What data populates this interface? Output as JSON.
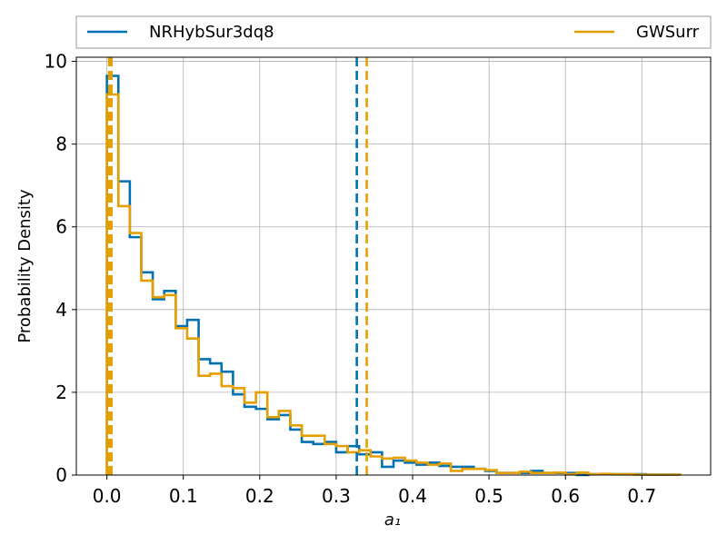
{
  "chart_data": {
    "type": "histogram",
    "xlabel": "a₁",
    "ylabel": "Probability Density",
    "xlim": [
      -0.04,
      0.79
    ],
    "ylim": [
      0,
      10.1
    ],
    "xticks": [
      0.0,
      0.1,
      0.2,
      0.3,
      0.4,
      0.5,
      0.6,
      0.7
    ],
    "xtick_labels": [
      "0.0",
      "0.1",
      "0.2",
      "0.3",
      "0.4",
      "0.5",
      "0.6",
      "0.7"
    ],
    "yticks": [
      0,
      2,
      4,
      6,
      8,
      10
    ],
    "ytick_labels": [
      "0",
      "2",
      "4",
      "6",
      "8",
      "10"
    ],
    "grid": true,
    "legend_position": "top, above plot",
    "bin_edges": [
      0.0,
      0.015,
      0.03,
      0.045,
      0.06,
      0.075,
      0.09,
      0.105,
      0.12,
      0.135,
      0.15,
      0.165,
      0.18,
      0.195,
      0.21,
      0.225,
      0.24,
      0.255,
      0.27,
      0.285,
      0.3,
      0.315,
      0.33,
      0.345,
      0.36,
      0.375,
      0.39,
      0.405,
      0.42,
      0.435,
      0.45,
      0.465,
      0.48,
      0.495,
      0.51,
      0.525,
      0.54,
      0.555,
      0.57,
      0.585,
      0.6,
      0.615,
      0.63,
      0.645,
      0.66,
      0.675,
      0.69,
      0.705,
      0.72,
      0.735,
      0.75
    ],
    "series": [
      {
        "name": "NRHybSur3dq8",
        "color": "#0072b2",
        "values": [
          9.65,
          7.1,
          5.75,
          4.9,
          4.25,
          4.45,
          3.6,
          3.75,
          2.8,
          2.7,
          2.5,
          1.95,
          1.65,
          1.6,
          1.35,
          1.45,
          1.1,
          0.8,
          0.75,
          0.8,
          0.55,
          0.7,
          0.5,
          0.55,
          0.2,
          0.35,
          0.3,
          0.25,
          0.3,
          0.22,
          0.2,
          0.2,
          0.15,
          0.1,
          0.05,
          0.05,
          0.05,
          0.1,
          0.05,
          0.05,
          0.05,
          0.0,
          0.02,
          0.02,
          0.02,
          0.02,
          0.02,
          0.01,
          0.01,
          0.01
        ],
        "median": 0.327
      },
      {
        "name": "GWSurr",
        "color": "#e69f00",
        "values": [
          9.2,
          6.5,
          5.85,
          4.7,
          4.3,
          4.35,
          3.55,
          3.3,
          2.4,
          2.45,
          2.15,
          2.1,
          1.75,
          2.0,
          1.4,
          1.55,
          1.2,
          0.95,
          0.95,
          0.75,
          0.7,
          0.55,
          0.6,
          0.45,
          0.4,
          0.42,
          0.35,
          0.3,
          0.25,
          0.28,
          0.1,
          0.15,
          0.15,
          0.12,
          0.05,
          0.05,
          0.08,
          0.05,
          0.05,
          0.06,
          0.02,
          0.06,
          0.02,
          0.03,
          0.02,
          0.02,
          0.01,
          0.01,
          0.01,
          0.01
        ],
        "median": 0.34
      }
    ],
    "extra_dashed_lines": [
      {
        "x": 0.003,
        "color": "#e69f00"
      },
      {
        "x": 0.006,
        "color": "#e69f00"
      }
    ]
  }
}
